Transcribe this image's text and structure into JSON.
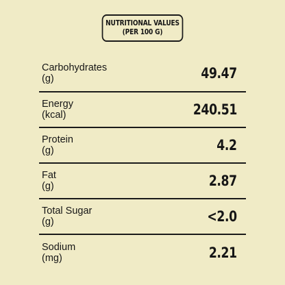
{
  "header": {
    "line1": "NUTRITIONAL VALUES",
    "line2": "(PER 100 G)"
  },
  "nutrients": [
    {
      "name": "Carbohydrates",
      "unit": "(g)",
      "value": "49.47"
    },
    {
      "name": "Energy",
      "unit": "(kcal)",
      "value": "240.51"
    },
    {
      "name": "Protein",
      "unit": "(g)",
      "value": "4.2"
    },
    {
      "name": "Fat",
      "unit": "(g)",
      "value": "2.87"
    },
    {
      "name": "Total Sugar",
      "unit": "(g)",
      "value": "<2.0"
    },
    {
      "name": "Sodium",
      "unit": "(mg)",
      "value": "2.21"
    }
  ]
}
